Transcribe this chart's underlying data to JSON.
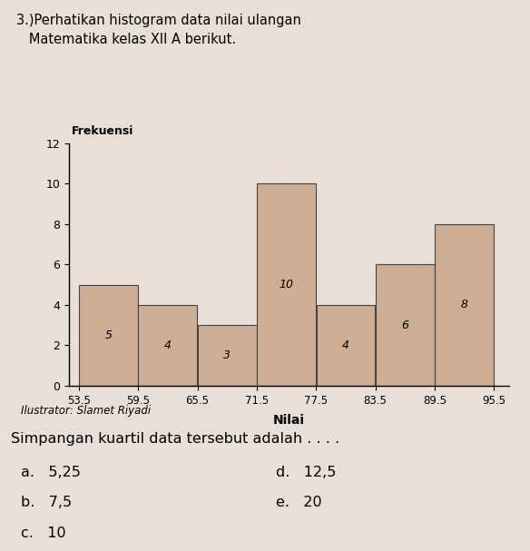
{
  "title_line1": "3.)Perhatikan histogram data nilai ulangan",
  "title_line2": "   Matematika kelas XII A berikut.",
  "ylabel": "Frekuensi",
  "xlabel": "Nilai",
  "illustrator": "Ilustrator: Slamet Riyadi",
  "question": "Simpangan kuartil data tersebut adalah . . . .",
  "options_left": [
    {
      "label": "a.",
      "value": "5,25"
    },
    {
      "label": "b.",
      "value": "7,5"
    },
    {
      "label": "c.",
      "value": "10"
    }
  ],
  "options_right": [
    {
      "label": "d.",
      "value": "12,5"
    },
    {
      "label": "e.",
      "value": "20"
    }
  ],
  "bar_edges": [
    53.5,
    59.5,
    65.5,
    71.5,
    77.5,
    83.5,
    89.5,
    95.5
  ],
  "frequencies": [
    5,
    4,
    3,
    10,
    4,
    6,
    8
  ],
  "bar_labels": [
    "5",
    "4",
    "3",
    "10",
    "4",
    "6",
    "8"
  ],
  "bar_color": "#CEAD95",
  "bar_edgecolor": "#444444",
  "ylim": [
    0,
    12
  ],
  "yticks": [
    0,
    2,
    4,
    6,
    8,
    10,
    12
  ],
  "fig_width": 5.84,
  "fig_height": 6.07,
  "dpi": 100,
  "bg_color": "#E8E0D8"
}
